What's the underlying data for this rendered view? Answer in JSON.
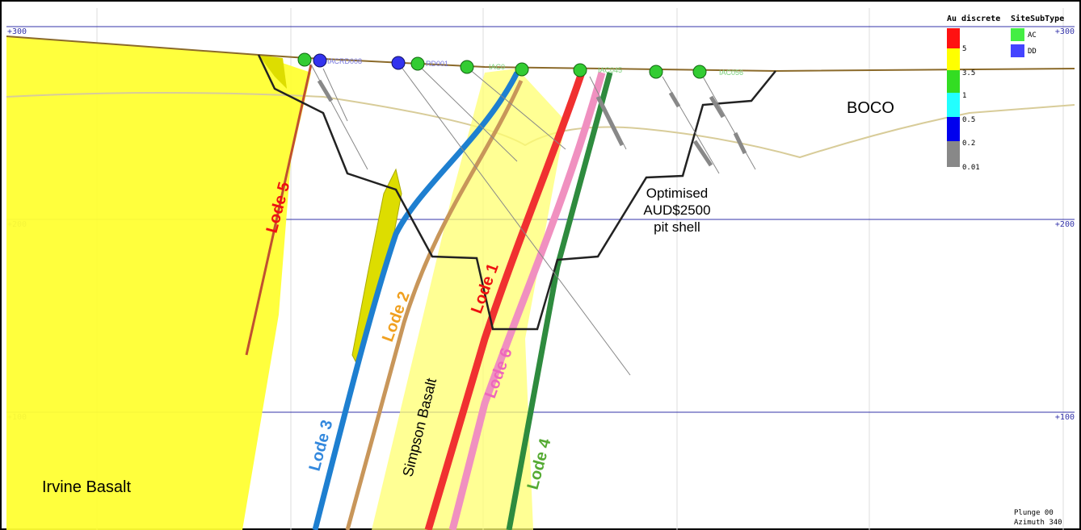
{
  "elevations": [
    "+300",
    "+200",
    "+100"
  ],
  "legend": {
    "au_title": "Au discrete",
    "au_classes": [
      "5",
      "3.5",
      "1",
      "0.5",
      "0.2",
      "0.01"
    ],
    "site_title": "SiteSubType",
    "site_types": [
      "AC",
      "DD"
    ]
  },
  "lodes": [
    "Lode 1",
    "Lode 2",
    "Lode 3",
    "Lode 4",
    "Lode 5",
    "Lode 6"
  ],
  "units": {
    "simpson": "Simpson Basalt",
    "irvine": "Irvine Basalt",
    "boco": "BOCO"
  },
  "pit_shell": [
    "Optimised",
    "AUD$2500",
    "pit shell"
  ],
  "holes": [
    "IACRD008",
    "RD001",
    "IAC0",
    "IAC045",
    "IAC056"
  ],
  "view": {
    "plunge": "Plunge 00",
    "azimuth": "Azimuth 340"
  }
}
